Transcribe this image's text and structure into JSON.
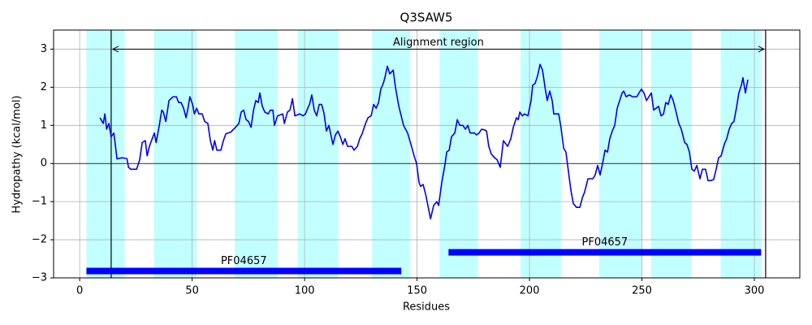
{
  "chart_data": {
    "type": "line",
    "title": "Q3SAW5",
    "x_label": "Residues",
    "y_label": "Hydropathy (kcal/mol)",
    "color": "#0000ee",
    "grid": true,
    "region_color": "#c2ffff",
    "domain_color": "#0000ff",
    "xlim": [
      -11.6,
      320.2
    ],
    "ylim": [
      -3,
      3.5
    ],
    "xticks": [
      0,
      50,
      100,
      150,
      200,
      250,
      300
    ],
    "yticks": [
      {
        "value": -3,
        "label": "−3"
      },
      {
        "value": -2,
        "label": "−2"
      },
      {
        "value": -1,
        "label": "−1"
      },
      0,
      1,
      2,
      3
    ],
    "regions": [
      [
        3,
        20
      ],
      [
        33,
        52
      ],
      [
        69,
        88
      ],
      [
        97,
        115
      ],
      [
        130,
        147
      ],
      [
        160,
        177
      ],
      [
        196,
        214
      ],
      [
        231,
        250
      ],
      [
        254,
        272
      ],
      [
        285,
        303
      ]
    ],
    "alignment": {
      "label": "Alignment region",
      "start": 14,
      "end": 305,
      "y": 3
    },
    "domains": [
      {
        "label": "PF04657",
        "start": 3,
        "end": 143,
        "y": -2.82
      },
      {
        "label": "PF04657",
        "start": 164,
        "end": 303,
        "y": -2.33
      }
    ],
    "x": [
      9,
      10.5,
      11.2,
      12,
      13,
      14,
      15.2,
      16.6,
      18.8,
      21,
      21.7,
      22.7,
      25.3,
      26.7,
      27.8,
      29.2,
      30,
      31,
      33.2,
      34,
      35.4,
      36.5,
      37.2,
      38.3,
      39.7,
      41.5,
      43,
      44,
      45.1,
      46.2,
      47.3,
      48,
      49,
      50.2,
      51,
      52,
      53,
      54.5,
      55.6,
      57,
      58.1,
      59.2,
      60,
      61,
      62.8,
      63.9,
      65,
      67.1,
      69.3,
      70.8,
      71.8,
      72.9,
      74,
      75.1,
      76.2,
      77.3,
      78.3,
      79.4,
      80.1,
      81.2,
      82.3,
      83.8,
      84.8,
      85.9,
      86.6,
      88,
      90.3,
      91,
      92.4,
      93.5,
      94.6,
      95.7,
      97.8,
      99.3,
      100.4,
      101.4,
      102.2,
      103.2,
      104.3,
      105.4,
      106.5,
      107.6,
      108.7,
      109.7,
      110.8,
      112.6,
      113.7,
      114.8,
      115.9,
      117,
      118,
      119.1,
      121,
      122,
      123.5,
      124.5,
      125.6,
      127.1,
      128.2,
      129.6,
      130.7,
      131.8,
      132.9,
      133.9,
      135,
      135.7,
      136.8,
      137.9,
      139.4,
      140.4,
      141.9,
      144,
      145.8,
      147.3,
      148.7,
      149.8,
      150.9,
      151.6,
      152.7,
      153.8,
      156,
      157.4,
      158.8,
      159.6,
      161,
      162.5,
      163.2,
      164.3,
      165.3,
      166.8,
      167.9,
      169,
      170.4,
      171.5,
      172.6,
      173.6,
      175.5,
      176.5,
      177.6,
      178.7,
      180.1,
      180.9,
      181.9,
      183,
      184.5,
      185.6,
      187,
      188.4,
      190.3,
      191.7,
      192.8,
      194.2,
      195,
      195.7,
      196.8,
      197.8,
      199.3,
      200.7,
      201.4,
      202.5,
      203.6,
      204.7,
      205.8,
      206.9,
      207.9,
      209,
      210.1,
      210.8,
      213,
      214,
      215.2,
      216.2,
      217.3,
      218.4,
      219.5,
      220.9,
      222.4,
      223.5,
      224.5,
      226,
      228.2,
      229.2,
      230.3,
      231.4,
      232.5,
      233.6,
      234.7,
      235.7,
      236.8,
      237.9,
      239,
      240.1,
      241.2,
      241.9,
      243,
      244.4,
      245.8,
      247.7,
      248.7,
      249.8,
      250.9,
      252,
      253.1,
      254.2,
      255.2,
      256.3,
      257.4,
      258.5,
      259.6,
      260.6,
      261.7,
      262.8,
      263.9,
      265,
      266.4,
      267.5,
      269,
      270,
      271.1,
      272.2,
      273.3,
      274.4,
      275.8,
      276.9,
      278.3,
      279.4,
      280.5,
      281.9,
      283,
      284.1,
      285.2,
      286.6,
      287.7,
      288.8,
      289.9,
      290.9,
      292,
      293.1,
      294.2,
      294.9,
      296,
      297.1
    ],
    "values": [
      1.2,
      1.05,
      1.3,
      0.9,
      1.05,
      0.7,
      0.8,
      0.12,
      0.15,
      0.13,
      -0.1,
      -0.15,
      -0.15,
      0.1,
      0.55,
      0.6,
      0.2,
      0.45,
      0.8,
      0.55,
      1.0,
      1.4,
      1.35,
      1.1,
      1.65,
      1.75,
      1.75,
      1.6,
      1.6,
      1.45,
      1.2,
      1.4,
      1.75,
      1.55,
      1.3,
      1.45,
      1.3,
      1.3,
      1.1,
      1.05,
      0.6,
      0.35,
      0.6,
      0.35,
      0.35,
      0.6,
      0.78,
      0.82,
      0.95,
      1.05,
      1.35,
      1.4,
      1.15,
      1.1,
      0.95,
      1.4,
      1.65,
      1.6,
      1.85,
      1.5,
      1.35,
      1.3,
      1.4,
      1.4,
      1.0,
      1.25,
      1.3,
      1.05,
      1.35,
      1.4,
      1.7,
      1.25,
      1.3,
      1.25,
      1.3,
      1.45,
      1.55,
      1.8,
      1.4,
      1.25,
      1.55,
      1.55,
      1.3,
      0.85,
      1.0,
      0.5,
      0.75,
      0.85,
      0.7,
      0.5,
      0.65,
      0.45,
      0.45,
      0.35,
      0.45,
      0.65,
      0.78,
      1.05,
      1.2,
      1.25,
      1.55,
      1.45,
      1.6,
      1.95,
      2.1,
      2.25,
      2.55,
      2.35,
      2.45,
      2.0,
      1.5,
      1.0,
      0.8,
      0.5,
      0.2,
      0.0,
      -0.5,
      -0.6,
      -0.55,
      -0.8,
      -1.45,
      -1.1,
      -1.0,
      -1.1,
      -0.5,
      0.0,
      0.3,
      0.35,
      0.7,
      0.8,
      1.15,
      1.0,
      1.0,
      0.9,
      1.0,
      0.8,
      0.8,
      0.75,
      0.8,
      0.9,
      0.88,
      0.85,
      0.45,
      0.25,
      0.15,
      0.1,
      -0.1,
      0.6,
      0.45,
      0.65,
      0.95,
      1.2,
      1.15,
      1.35,
      1.25,
      1.3,
      1.25,
      1.65,
      2.05,
      2.1,
      2.3,
      2.6,
      2.45,
      2.0,
      1.65,
      1.9,
      1.65,
      1.3,
      1.3,
      0.95,
      0.4,
      0.3,
      -0.2,
      -0.7,
      -1.05,
      -1.15,
      -1.15,
      -0.9,
      -0.75,
      -0.4,
      -0.4,
      -0.3,
      -0.05,
      -0.3,
      0.0,
      0.35,
      0.3,
      0.65,
      0.85,
      1.0,
      1.45,
      1.65,
      1.85,
      1.9,
      1.75,
      1.8,
      1.75,
      1.75,
      1.85,
      1.95,
      1.85,
      1.65,
      1.75,
      1.85,
      1.4,
      1.45,
      1.5,
      1.25,
      1.3,
      1.6,
      1.55,
      1.8,
      1.65,
      1.4,
      1.05,
      0.9,
      0.55,
      0.5,
      0.3,
      -0.15,
      -0.2,
      -0.05,
      -0.4,
      -0.15,
      -0.15,
      -0.45,
      -0.45,
      -0.42,
      -0.15,
      0.15,
      0.2,
      0.5,
      0.65,
      0.9,
      1.05,
      1.1,
      1.45,
      1.85,
      2.05,
      2.25,
      1.85,
      2.2
    ]
  }
}
